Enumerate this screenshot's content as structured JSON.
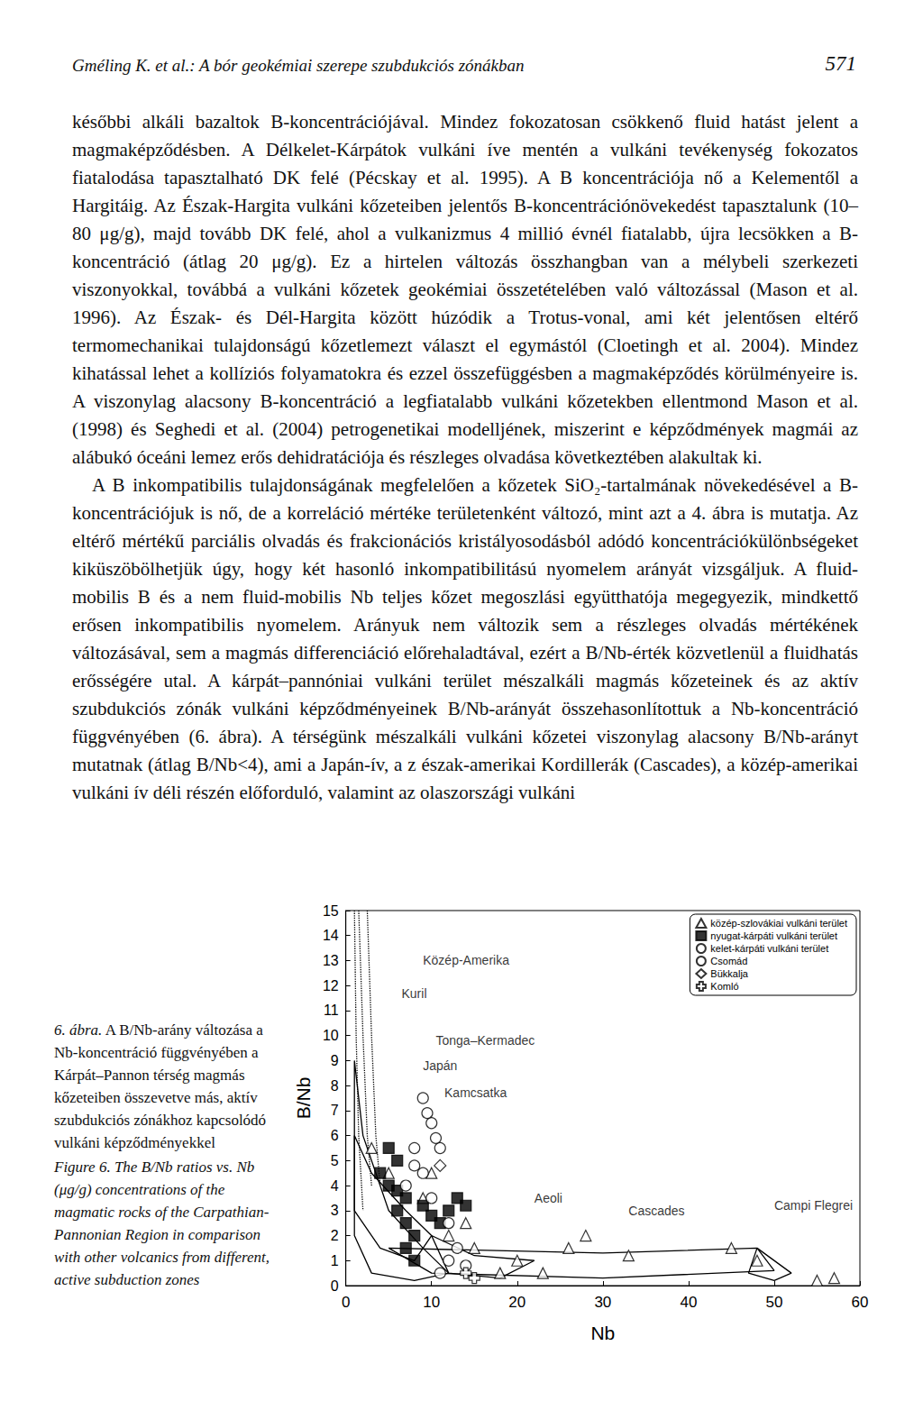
{
  "header": {
    "running_head": "Gméling K. et al.: A bór geokémiai szerepe szubdukciós zónákban",
    "page": "571"
  },
  "paragraphs": [
    "későbbi alkáli bazaltok B-koncentrációjával. Mindez fokozatosan csökkenő fluid hatást jelent a magmaképződésben. A Délkelet-Kárpátok vulkáni íve mentén a vulkáni tevékenység fokozatos fiatalodása tapasztalható DK felé (Pécskay et al. 1995). A B koncentrációja nő a Kelementől a Hargitáig. Az Észak-Hargita vulkáni kőzeteiben jelentős B-koncentrációnövekedést tapasztalunk (10–80 μg/g), majd tovább DK felé, ahol a vulkanizmus 4 millió évnél fiatalabb, újra lecsökken a B-koncentráció (átlag 20 μg/g). Ez a hirtelen változás összhangban van a mélybeli szerkezeti viszonyokkal, továbbá a vulkáni kőzetek geokémiai összetételében való változással (Mason et al. 1996). Az Észak- és Dél-Hargita között húzódik a Trotus-vonal, ami két jelentősen eltérő termomechanikai tulajdonságú kőzetlemezt választ el egymástól (Cloetingh et al. 2004). Mindez kihatással lehet a kollíziós folyamatokra és ezzel összefüggésben a magmaképződés körülményeire is. A viszonylag alacsony B-koncentráció a legfiatalabb vulkáni kőzetekben ellentmond Mason et al. (1998) és Seghedi et al. (2004) petrogenetikai modelljének, miszerint e képződmények magmái az alábukó óceáni lemez erős dehidratációja és részleges olvadása következtében alakultak ki.",
    "A B inkompatibilis tulajdonságának megfelelően a kőzetek SiO₂-tartalmának növekedésével a B-koncentrációjuk is nő, de a korreláció mértéke területenként változó, mint azt a 4. ábra is mutatja. Az eltérő mértékű parciális olvadás és frakcionációs kristályosodásból adódó koncentrációkülönbségeket kiküszöbölhetjük úgy, hogy két hasonló inkompatibilitású nyomelem arányát vizsgáljuk. A fluid-mobilis B és a nem fluid-mobilis Nb teljes kőzet megoszlási együtthatója megegyezik, mindkettő erősen inkompatibilis nyomelem. Arányuk nem változik sem a részleges olvadás mértékének változásával, sem a magmás differenciáció előrehaladtával, ezért a B/Nb-érték közvetlenül a fluidhatás erősségére utal. A kárpát–pannóniai vulkáni terület mészalkáli magmás kőzeteinek és az aktív szubdukciós zónák vulkáni képződményeinek B/Nb-arányát összehasonlítottuk a Nb-koncentráció függvényében (6. ábra). A térségünk mészalkáli vulkáni kőzetei viszonylag alacsony B/Nb-arányt mutatnak (átlag B/Nb<4), ami a Japán-ív, a z észak-amerikai Kordillerák (Cascades), a közép-amerikai vulkáni ív déli részén előforduló, valamint az olaszországi vulkáni"
  ],
  "figure": {
    "caption_hu": {
      "label": "6. ábra.",
      "text": "A B/Nb-arány változása a Nb-koncentráció függvényében a Kárpát–Pannon térség magmás kőzeteiben összevetve más, aktív szubdukciós zónákhoz kapcsolódó vulkáni képződményekkel"
    },
    "caption_en": "Figure 6. The B/Nb ratios vs. Nb (μg/g) concentrations of the magmatic rocks of the Carpathian-Pannonian Region in comparison with other volcanics from different, active subduction zones"
  },
  "chart_data": {
    "type": "scatter",
    "x_label": "Nb",
    "y_label": "B/Nb",
    "xlim": [
      0,
      60
    ],
    "xticks": [
      0,
      10,
      20,
      30,
      40,
      50,
      60
    ],
    "ylim": [
      0,
      15
    ],
    "yticks": [
      0,
      1,
      2,
      3,
      4,
      5,
      6,
      7,
      8,
      9,
      10,
      11,
      12,
      13,
      14,
      15
    ],
    "grid": false,
    "legend": "top-right",
    "series": [
      {
        "name": "közép-szlovákiai vulkáni terület",
        "marker": "triangle_open",
        "color": "#000000",
        "values": [
          [
            3,
            5.5
          ],
          [
            5,
            4.5
          ],
          [
            10,
            4.5
          ],
          [
            9,
            3.5
          ],
          [
            14,
            2.5
          ],
          [
            12,
            2
          ],
          [
            15,
            1.5
          ],
          [
            18,
            0.5
          ],
          [
            20,
            1
          ],
          [
            23,
            0.5
          ],
          [
            26,
            1.5
          ],
          [
            28,
            2
          ],
          [
            33,
            1.2
          ],
          [
            45,
            1.5
          ],
          [
            48,
            1
          ],
          [
            55,
            0.2
          ],
          [
            57,
            0.3
          ]
        ]
      },
      {
        "name": "nyugat-kárpáti vulkáni terület",
        "marker": "square",
        "color": "#000000",
        "values": [
          [
            4,
            4.5
          ],
          [
            5,
            4
          ],
          [
            6,
            3.8
          ],
          [
            7,
            3.5
          ],
          [
            6,
            3
          ],
          [
            7,
            2.5
          ],
          [
            8,
            2
          ],
          [
            7,
            1.5
          ],
          [
            8,
            1
          ],
          [
            13,
            3.5
          ],
          [
            14,
            3.2
          ],
          [
            12,
            3
          ],
          [
            9,
            3.2
          ],
          [
            10,
            2.8
          ],
          [
            11,
            2.5
          ],
          [
            6,
            5
          ],
          [
            5,
            5.5
          ]
        ]
      },
      {
        "name": "kelet-kárpáti vulkáni terület",
        "marker": "circle_open",
        "color": "#000000",
        "values": [
          [
            9,
            7.5
          ],
          [
            10,
            6.5
          ],
          [
            11,
            5.5
          ],
          [
            8,
            5.5
          ],
          [
            8,
            4.8
          ],
          [
            9,
            4.5
          ],
          [
            7,
            4
          ],
          [
            10,
            3.5
          ],
          [
            12,
            2.5
          ],
          [
            13,
            1.5
          ],
          [
            12,
            1
          ],
          [
            14,
            0.8
          ],
          [
            11,
            0.5
          ]
        ]
      },
      {
        "name": "Csomád",
        "marker": "circle_open",
        "color": "#000000",
        "values": [
          [
            9.5,
            6.9
          ],
          [
            10.5,
            5.9
          ]
        ]
      },
      {
        "name": "Bükkalja",
        "marker": "diamond_open",
        "color": "#000000",
        "values": [
          [
            11,
            4.8
          ]
        ]
      },
      {
        "name": "Komló",
        "marker": "cross_open",
        "color": "#000000",
        "values": [
          [
            15,
            0.3
          ],
          [
            14,
            0.5
          ]
        ]
      }
    ],
    "fields": [
      {
        "name": "Közép-Amerika",
        "line_style": "dotted",
        "values": [
          [
            2.5,
            15
          ],
          [
            3,
            10
          ],
          [
            3.5,
            6
          ],
          [
            4,
            4
          ]
        ]
      },
      {
        "name": "Kuril",
        "line_style": "dotted",
        "values": [
          [
            1.5,
            15
          ],
          [
            2,
            10
          ],
          [
            2.5,
            6
          ],
          [
            3,
            4
          ]
        ]
      },
      {
        "name": "Tonga–Kermadec",
        "line_style": "dotted",
        "values": [
          [
            1,
            15
          ],
          [
            1.2,
            10
          ],
          [
            1.5,
            6
          ],
          [
            2,
            3
          ]
        ]
      },
      {
        "name": "Japán",
        "line_style": "solid",
        "values": [
          [
            1,
            9
          ],
          [
            2,
            6
          ],
          [
            5,
            3
          ],
          [
            9,
            1.5
          ],
          [
            12,
            0.5
          ],
          [
            8,
            0.2
          ],
          [
            3,
            0.5
          ],
          [
            1,
            2
          ],
          [
            1,
            9
          ]
        ]
      },
      {
        "name": "Kamcsatka",
        "line_style": "solid",
        "values": [
          [
            1,
            6
          ],
          [
            3,
            4.5
          ],
          [
            7,
            3
          ],
          [
            10,
            2
          ],
          [
            8,
            1
          ],
          [
            4,
            1.5
          ],
          [
            1,
            3
          ],
          [
            1,
            6
          ]
        ]
      },
      {
        "name": "Aeoli",
        "line_style": "solid",
        "values": [
          [
            10,
            2
          ],
          [
            15,
            1.2
          ],
          [
            22,
            1
          ],
          [
            18,
            0.3
          ],
          [
            12,
            0.5
          ],
          [
            10,
            2
          ]
        ]
      },
      {
        "name": "Cascades",
        "line_style": "solid",
        "values": [
          [
            5,
            1.5
          ],
          [
            30,
            1.3
          ],
          [
            48,
            1.5
          ],
          [
            50,
            0.6
          ],
          [
            30,
            0.3
          ],
          [
            10,
            0.5
          ],
          [
            5,
            1.5
          ]
        ]
      },
      {
        "name": "Campi Flegrei",
        "line_style": "solid",
        "values": [
          [
            48,
            1.5
          ],
          [
            52,
            0.5
          ],
          [
            50,
            0.2
          ],
          [
            47,
            0.5
          ],
          [
            48,
            1.5
          ]
        ]
      }
    ],
    "annotations": [
      {
        "text": "Közép-Amerika",
        "x": 9,
        "y": 13
      },
      {
        "text": "Kuril",
        "x": 6.5,
        "y": 11.7
      },
      {
        "text": "Tonga–Kermadec",
        "x": 10.5,
        "y": 9.8
      },
      {
        "text": "Japán",
        "x": 9,
        "y": 8.8
      },
      {
        "text": "Kamcsatka",
        "x": 11.5,
        "y": 7.7
      },
      {
        "text": "Aeoli",
        "x": 22,
        "y": 3.5
      },
      {
        "text": "Cascades",
        "x": 33,
        "y": 3
      },
      {
        "text": "Campi Flegrei",
        "x": 50,
        "y": 3.2
      }
    ]
  }
}
